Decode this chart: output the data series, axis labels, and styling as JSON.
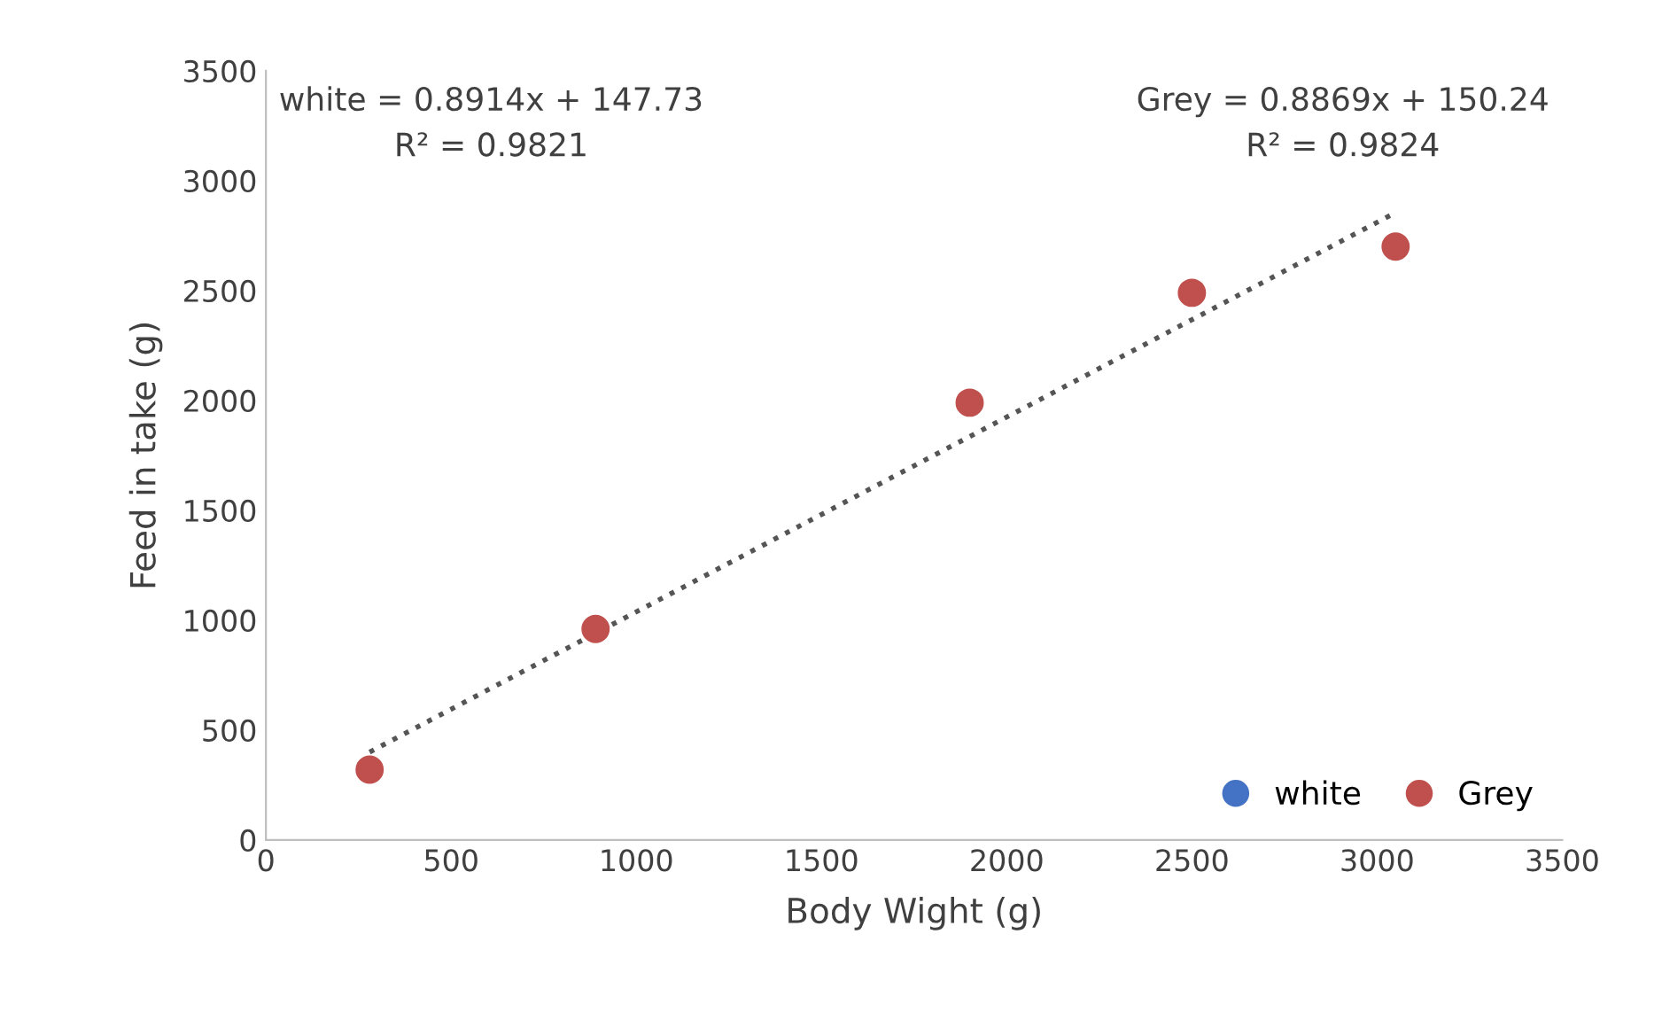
{
  "chart_data": {
    "type": "scatter",
    "xlabel": "Body Wight (g)",
    "ylabel": "Feed in take (g)",
    "x": [
      280,
      890,
      1900,
      2500,
      3050
    ],
    "series": [
      {
        "name": "white",
        "color": "#4472c4",
        "values": [
          null,
          null,
          null,
          null,
          null
        ]
      },
      {
        "name": "Grey",
        "color": "#c0504d",
        "values": [
          320,
          960,
          1990,
          2490,
          2700
        ]
      },
      {
        "type": "line",
        "color": "#555555",
        "x": [
          280,
          3050
        ],
        "values": [
          400,
          2855
        ],
        "line_style": "dotted",
        "marker": "none"
      }
    ],
    "annotations": [
      "white = 0.8914x + 147.73\nR² = 0.9821",
      "Grey = 0.8869x + 150.24\nR² = 0.9824"
    ],
    "xlim": [
      0,
      3500
    ],
    "xticks": [
      0,
      500,
      1000,
      1500,
      2000,
      2500,
      3000,
      3500
    ],
    "ylim": [
      0,
      3500
    ],
    "yticks": [
      0,
      500,
      1000,
      1500,
      2000,
      2500,
      3000,
      3500
    ],
    "grid": false,
    "legend": "bottom right",
    "marker": "circle"
  }
}
